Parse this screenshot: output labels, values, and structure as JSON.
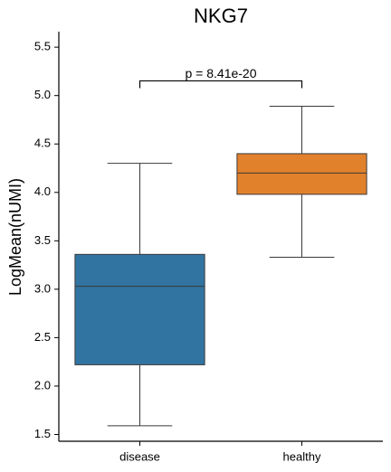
{
  "chart_data": {
    "type": "box",
    "title": "NKG7",
    "ylabel": "LogMean(nUMI)",
    "categories": [
      "disease",
      "healthy"
    ],
    "boxes": [
      {
        "min": 1.59,
        "q1": 2.22,
        "median": 3.03,
        "q3": 3.36,
        "max": 4.3
      },
      {
        "min": 3.33,
        "q1": 3.98,
        "median": 4.2,
        "q3": 4.4,
        "max": 4.89
      }
    ],
    "colors": [
      "#3274a1",
      "#e1812c"
    ],
    "annotation": "p = 8.41e-20",
    "ylim": [
      1.43,
      5.66
    ],
    "yticks": [
      1.5,
      {
        "value": 2,
        "label": "2.0"
      },
      2.5,
      {
        "value": 3,
        "label": "3.0"
      },
      3.5,
      {
        "value": 4,
        "label": "4.0"
      },
      4.5,
      {
        "value": 5,
        "label": "5.0"
      },
      5.5
    ]
  }
}
